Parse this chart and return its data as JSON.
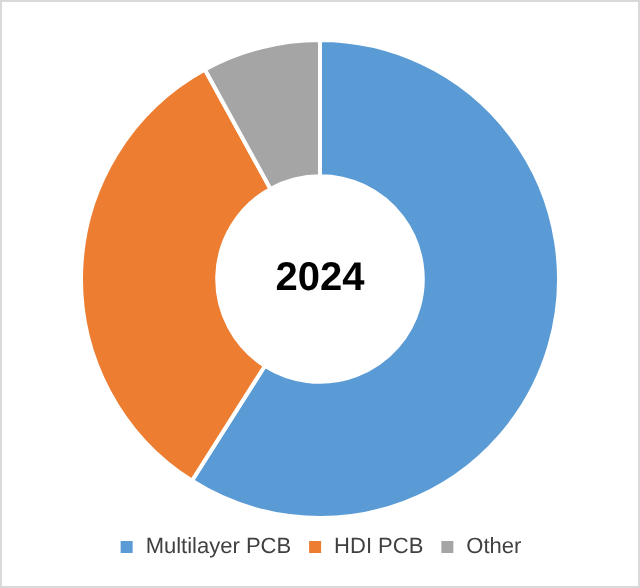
{
  "chart_data": {
    "type": "donut",
    "categories": [
      "Multilayer PCB",
      "HDI PCB",
      "Other"
    ],
    "values": [
      59,
      33,
      8
    ],
    "colors": [
      "#5b9bd5",
      "#ed7d31",
      "#a5a5a5"
    ],
    "annotations": [
      "2024"
    ],
    "legend": "bottom"
  }
}
